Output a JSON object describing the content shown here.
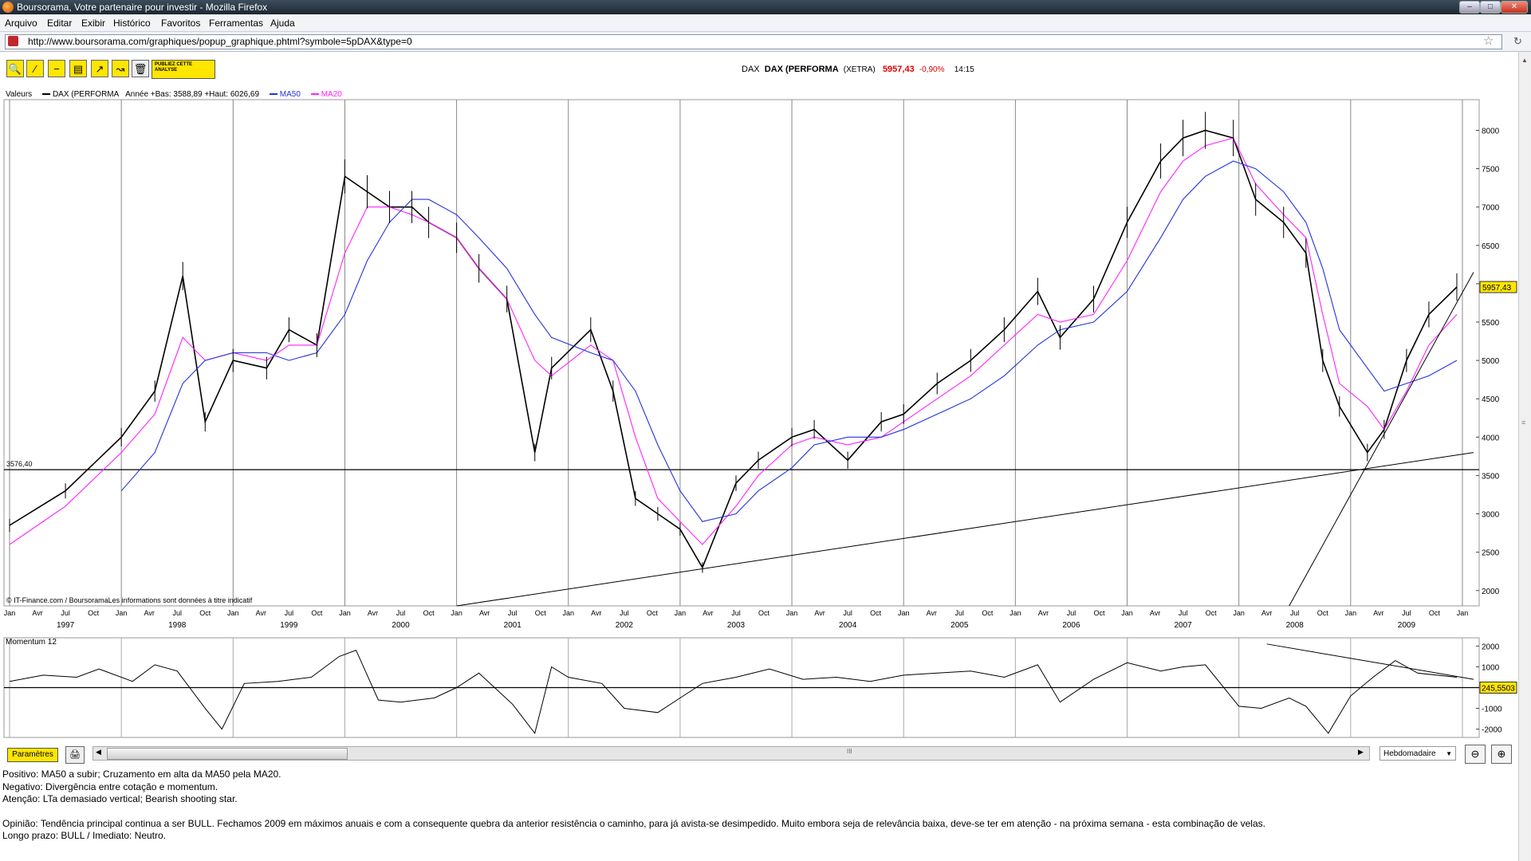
{
  "window": {
    "title": "Boursorama, Votre partenaire pour investir - Mozilla Firefox"
  },
  "menu": [
    "Arquivo",
    "Editar",
    "Exibir",
    "Histórico",
    "Favoritos",
    "Ferramentas",
    "Ajuda"
  ],
  "urlbar": {
    "url": "http://www.boursorama.com/graphiques/popup_graphique.phtml?symbole=5pDAX&type=0"
  },
  "toolbar": {
    "publiez_label": "PUBLIEZ CETTE ANALYSE"
  },
  "quote": {
    "exchange": "DAX",
    "name": "DAX (PERFORMA",
    "market": "(XETRA)",
    "price": "5957,43",
    "change": "-0,90%",
    "time": "14:15"
  },
  "legend": {
    "valeurs": "Valeurs",
    "series_label": "DAX (PERFORMA",
    "range": "Année +Bas: 3588,89 +Haut: 6026,69",
    "ma50": "MA50",
    "ma20": "MA20"
  },
  "colors": {
    "ma50": "#2233dd",
    "ma20": "#ff22ff",
    "accent": "#ffe600",
    "negative": "#dd0000"
  },
  "chart_data": [
    {
      "type": "line",
      "title": "DAX (PERFORMA",
      "y_axis_ticks": [
        2000,
        2500,
        3000,
        3500,
        4000,
        4500,
        5000,
        5500,
        6000,
        6500,
        7000,
        7500,
        8000
      ],
      "ylim": [
        1800,
        8400
      ],
      "x": [
        1997.0,
        1997.5,
        1998.0,
        1998.3,
        1998.55,
        1998.75,
        1999.0,
        1999.3,
        1999.5,
        1999.75,
        2000.0,
        2000.2,
        2000.4,
        2000.6,
        2000.75,
        2001.0,
        2001.2,
        2001.45,
        2001.7,
        2001.85,
        2002.2,
        2002.4,
        2002.6,
        2002.8,
        2003.0,
        2003.2,
        2003.5,
        2003.7,
        2004.0,
        2004.2,
        2004.5,
        2004.8,
        2005.0,
        2005.3,
        2005.6,
        2005.9,
        2006.2,
        2006.4,
        2006.7,
        2007.0,
        2007.3,
        2007.5,
        2007.7,
        2007.95,
        2008.15,
        2008.4,
        2008.6,
        2008.75,
        2008.9,
        2009.15,
        2009.3,
        2009.5,
        2009.7,
        2009.95
      ],
      "series": [
        {
          "name": "DAX (PERFORMA",
          "values": [
            2850,
            3300,
            4000,
            4600,
            6100,
            4200,
            5000,
            4900,
            5400,
            5200,
            7400,
            7200,
            7000,
            7000,
            6800,
            6600,
            6200,
            5800,
            3800,
            4900,
            5400,
            4600,
            3200,
            3000,
            2800,
            2300,
            3400,
            3700,
            4000,
            4100,
            3700,
            4200,
            4300,
            4700,
            5000,
            5400,
            5900,
            5300,
            5800,
            6800,
            7600,
            7900,
            8000,
            7900,
            7100,
            6800,
            6400,
            5000,
            4400,
            3800,
            4100,
            5000,
            5600,
            5957
          ]
        },
        {
          "name": "MA20",
          "values": [
            2600,
            3100,
            3800,
            4300,
            5300,
            5000,
            5100,
            5000,
            5200,
            5200,
            6400,
            7000,
            7000,
            6900,
            6800,
            6600,
            6200,
            5800,
            5000,
            4800,
            5200,
            5000,
            4000,
            3200,
            2900,
            2600,
            3100,
            3500,
            3900,
            4000,
            3900,
            4000,
            4200,
            4500,
            4800,
            5200,
            5600,
            5500,
            5600,
            6300,
            7200,
            7600,
            7800,
            7900,
            7300,
            6900,
            6600,
            5600,
            4700,
            4400,
            4100,
            4600,
            5200,
            5600
          ]
        },
        {
          "name": "MA50",
          "values": [
            null,
            null,
            3300,
            3800,
            4700,
            5000,
            5100,
            5100,
            5000,
            5100,
            5600,
            6300,
            6800,
            7100,
            7100,
            6900,
            6600,
            6200,
            5600,
            5300,
            5100,
            5000,
            4600,
            3900,
            3300,
            2900,
            3000,
            3300,
            3600,
            3900,
            4000,
            4000,
            4100,
            4300,
            4500,
            4800,
            5200,
            5400,
            5500,
            5900,
            6600,
            7100,
            7400,
            7600,
            7500,
            7200,
            6800,
            6200,
            5400,
            4900,
            4600,
            4700,
            4800,
            5000
          ]
        }
      ],
      "horizontal_line": {
        "value": 3576.4,
        "label": "3576,40"
      },
      "last_value_label": "5957,43",
      "x_tick_labels": [
        "Jan",
        "Avr",
        "Jul",
        "Oct"
      ],
      "year_labels": [
        "1997",
        "1998",
        "1999",
        "2000",
        "2001",
        "2002",
        "2003",
        "2004",
        "2005",
        "2006",
        "2007",
        "2008",
        "2009"
      ],
      "credit": "© IT-Finance.com / BoursoramaLes informations sont données à titre indicatif",
      "grid": true
    },
    {
      "type": "line",
      "title": "Momentum 12",
      "y_axis_ticks": [
        2000,
        1000,
        0,
        -1000,
        -2000
      ],
      "ylim": [
        -2400,
        2400
      ],
      "zero_label": "245,5503",
      "x": [
        1997.0,
        1997.3,
        1997.6,
        1997.8,
        1998.1,
        1998.3,
        1998.5,
        1998.75,
        1998.9,
        1999.1,
        1999.4,
        1999.7,
        1999.95,
        2000.1,
        2000.3,
        2000.5,
        2000.8,
        2001.0,
        2001.2,
        2001.5,
        2001.7,
        2001.85,
        2002.0,
        2002.3,
        2002.5,
        2002.8,
        2003.0,
        2003.2,
        2003.5,
        2003.8,
        2004.1,
        2004.4,
        2004.7,
        2005.0,
        2005.3,
        2005.6,
        2005.9,
        2006.2,
        2006.4,
        2006.7,
        2007.0,
        2007.3,
        2007.5,
        2007.7,
        2008.0,
        2008.2,
        2008.45,
        2008.6,
        2008.8,
        2009.0,
        2009.2,
        2009.4,
        2009.6,
        2009.95
      ],
      "series": [
        {
          "name": "Momentum 12",
          "values": [
            300,
            600,
            500,
            900,
            300,
            1100,
            800,
            -1000,
            -2000,
            200,
            300,
            500,
            1500,
            1800,
            -600,
            -700,
            -500,
            0,
            700,
            -800,
            -2200,
            1000,
            500,
            200,
            -1000,
            -1200,
            -500,
            200,
            500,
            900,
            400,
            500,
            300,
            600,
            700,
            800,
            500,
            1100,
            -700,
            400,
            1200,
            800,
            1000,
            1100,
            -900,
            -1000,
            -500,
            -900,
            -2200,
            -400,
            500,
            1300,
            700,
            500
          ]
        }
      ]
    }
  ],
  "bottom": {
    "params_label": "Paramètres",
    "scroll_mid": "III",
    "period_value": "Hebdomadaire"
  },
  "notes": {
    "line1": "Positivo: MA50 a subir; Cruzamento em alta da MA50 pela MA20.",
    "line2": "Negativo: Divergência entre cotação e momentum.",
    "line3": "Atenção: LTa demasiado vertical; Bearish shooting star.",
    "line4": "Opinião: Tendência principal continua a ser BULL. Fechamos 2009 em máximos anuais e com a consequente quebra da anterior resistência o caminho, para já avista-se desimpedido. Muito embora seja de relevância baixa, deve-se ter em atenção - na próxima semana - esta combinação de velas.",
    "line5": "Longo prazo: BULL  /  Imediato: Neutro."
  }
}
